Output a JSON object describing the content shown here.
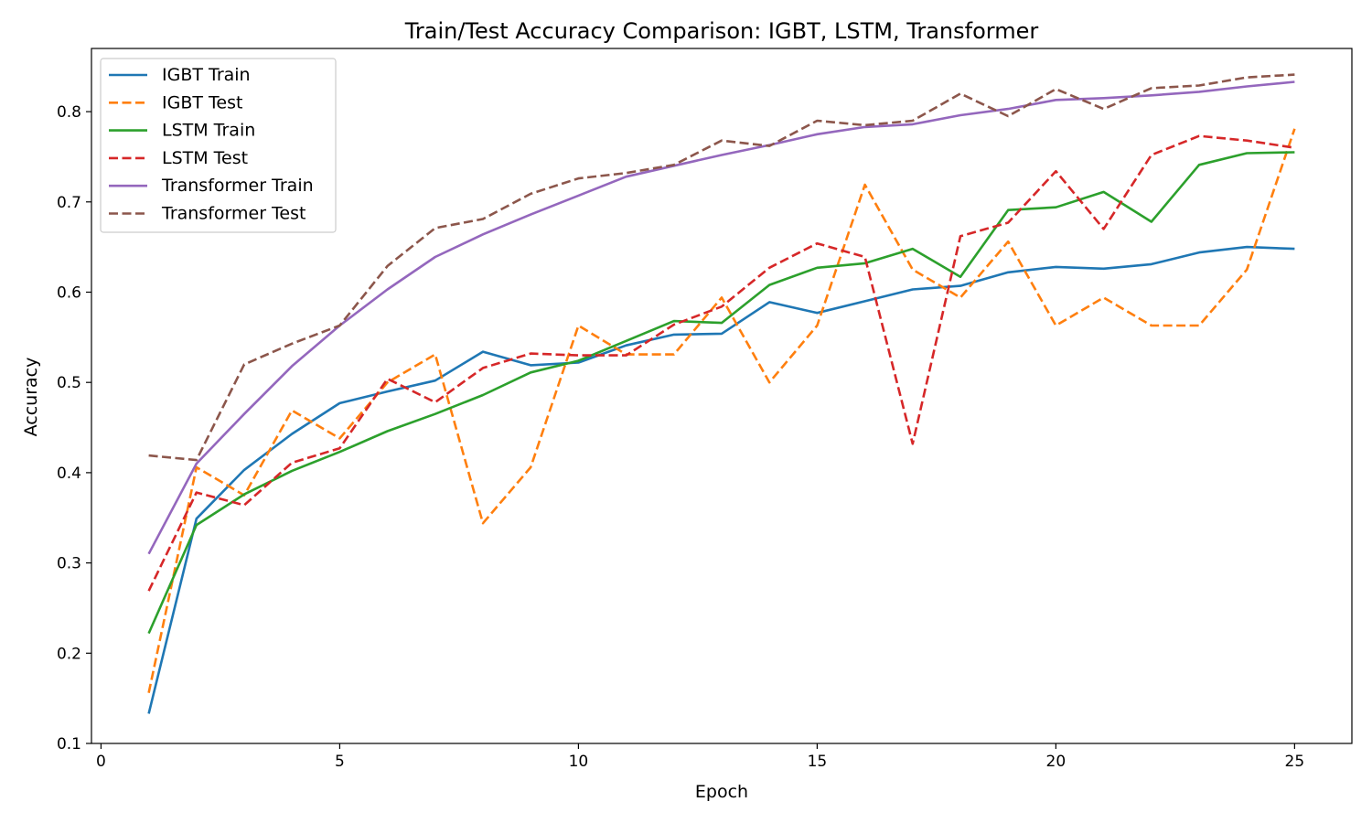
{
  "chart_data": {
    "type": "line",
    "title": "Train/Test Accuracy Comparison: IGBT, LSTM, Transformer",
    "xlabel": "Epoch",
    "ylabel": "Accuracy",
    "xlim": [
      -0.2,
      26.2
    ],
    "ylim": [
      0.1,
      0.87
    ],
    "xticks": [
      0,
      5,
      10,
      15,
      20,
      25
    ],
    "yticks": [
      0.1,
      0.2,
      0.3,
      0.4,
      0.5,
      0.6,
      0.7,
      0.8
    ],
    "grid": false,
    "legend_position": "top-left",
    "x": [
      1,
      2,
      3,
      4,
      5,
      6,
      7,
      8,
      9,
      10,
      11,
      12,
      13,
      14,
      15,
      16,
      17,
      18,
      19,
      20,
      21,
      22,
      23,
      24,
      25
    ],
    "series": [
      {
        "name": "IGBT Train",
        "color": "#1f77b4",
        "dash": "solid",
        "values": [
          0.133,
          0.349,
          0.403,
          0.443,
          0.477,
          0.49,
          0.502,
          0.534,
          0.519,
          0.522,
          0.541,
          0.553,
          0.554,
          0.589,
          0.577,
          0.59,
          0.603,
          0.607,
          0.622,
          0.628,
          0.626,
          0.631,
          0.644,
          0.65,
          0.648
        ]
      },
      {
        "name": "IGBT Test",
        "color": "#ff7f0e",
        "dash": "dashed",
        "values": [
          0.156,
          0.406,
          0.375,
          0.469,
          0.438,
          0.5,
          0.531,
          0.344,
          0.406,
          0.563,
          0.531,
          0.531,
          0.594,
          0.5,
          0.563,
          0.719,
          0.625,
          0.594,
          0.656,
          0.563,
          0.594,
          0.563,
          0.563,
          0.625,
          0.781
        ]
      },
      {
        "name": "LSTM Train",
        "color": "#2ca02c",
        "dash": "solid",
        "values": [
          0.222,
          0.342,
          0.376,
          0.402,
          0.423,
          0.446,
          0.465,
          0.486,
          0.511,
          0.524,
          0.546,
          0.568,
          0.566,
          0.608,
          0.627,
          0.632,
          0.648,
          0.617,
          0.691,
          0.694,
          0.711,
          0.678,
          0.741,
          0.754,
          0.755
        ]
      },
      {
        "name": "LSTM Test",
        "color": "#d62728",
        "dash": "dashed",
        "values": [
          0.269,
          0.378,
          0.364,
          0.411,
          0.427,
          0.504,
          0.478,
          0.516,
          0.532,
          0.53,
          0.53,
          0.564,
          0.584,
          0.627,
          0.654,
          0.639,
          0.432,
          0.662,
          0.677,
          0.734,
          0.67,
          0.752,
          0.773,
          0.768,
          0.76
        ]
      },
      {
        "name": "Transformer Train",
        "color": "#9467bd",
        "dash": "solid",
        "values": [
          0.31,
          0.41,
          0.465,
          0.518,
          0.563,
          0.603,
          0.639,
          0.664,
          0.686,
          0.707,
          0.728,
          0.74,
          0.752,
          0.763,
          0.775,
          0.783,
          0.786,
          0.796,
          0.803,
          0.813,
          0.815,
          0.818,
          0.822,
          0.828,
          0.833
        ]
      },
      {
        "name": "Transformer Test",
        "color": "#8c564b",
        "dash": "dashed",
        "values": [
          0.419,
          0.414,
          0.52,
          0.543,
          0.563,
          0.629,
          0.671,
          0.681,
          0.709,
          0.726,
          0.732,
          0.741,
          0.768,
          0.762,
          0.79,
          0.785,
          0.79,
          0.82,
          0.795,
          0.825,
          0.803,
          0.826,
          0.829,
          0.838,
          0.841
        ]
      }
    ]
  }
}
